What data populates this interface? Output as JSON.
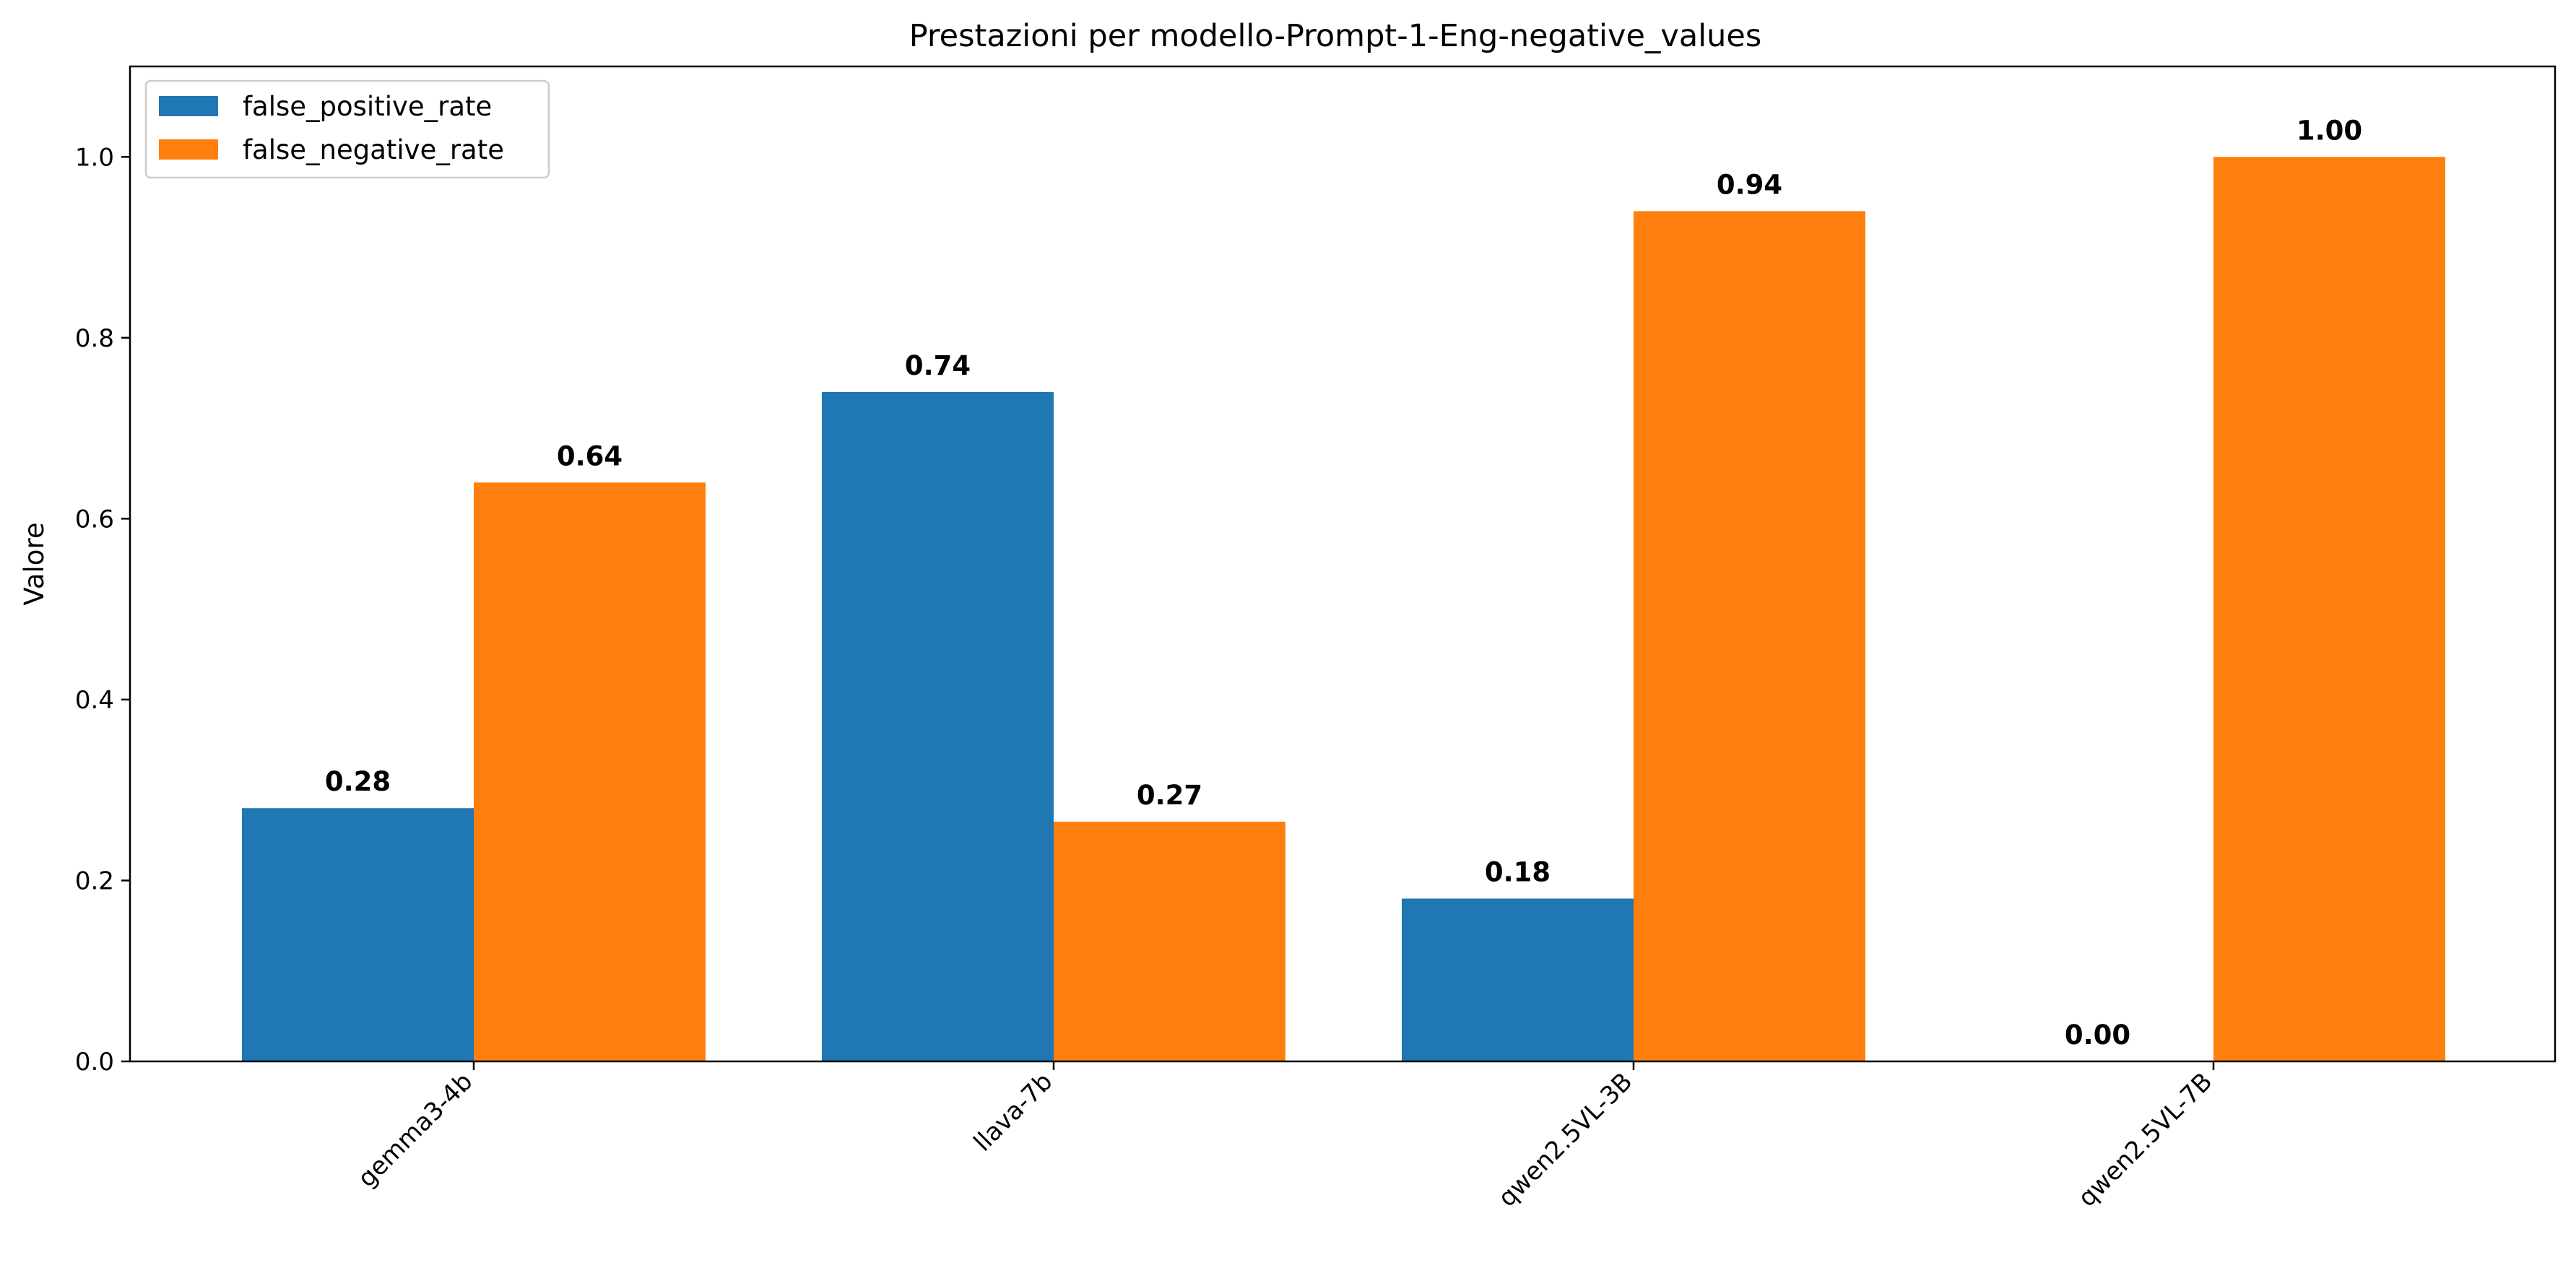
{
  "chart_data": {
    "type": "bar",
    "title": "Prestazioni per modello-Prompt-1-Eng-negative_values",
    "xlabel": "",
    "ylabel": "Valore",
    "ylim": [
      0,
      1.1
    ],
    "yticks": [
      "0.0",
      "0.2",
      "0.4",
      "0.6",
      "0.8",
      "1.0"
    ],
    "categories": [
      "gemma3-4b",
      "llava-7b",
      "qwen2.5VL-3B",
      "qwen2.5VL-7B"
    ],
    "series": [
      {
        "name": "false_positive_rate",
        "color": "#1f77b4",
        "values": [
          0.28,
          0.74,
          0.18,
          0.0
        ],
        "labels": [
          "0.28",
          "0.74",
          "0.18",
          "0.00"
        ]
      },
      {
        "name": "false_negative_rate",
        "color": "#ff7f0e",
        "values": [
          0.64,
          0.265,
          0.94,
          1.0
        ],
        "labels": [
          "0.64",
          "0.27",
          "0.94",
          "1.00"
        ]
      }
    ],
    "legend": "top-left",
    "grid": false
  }
}
